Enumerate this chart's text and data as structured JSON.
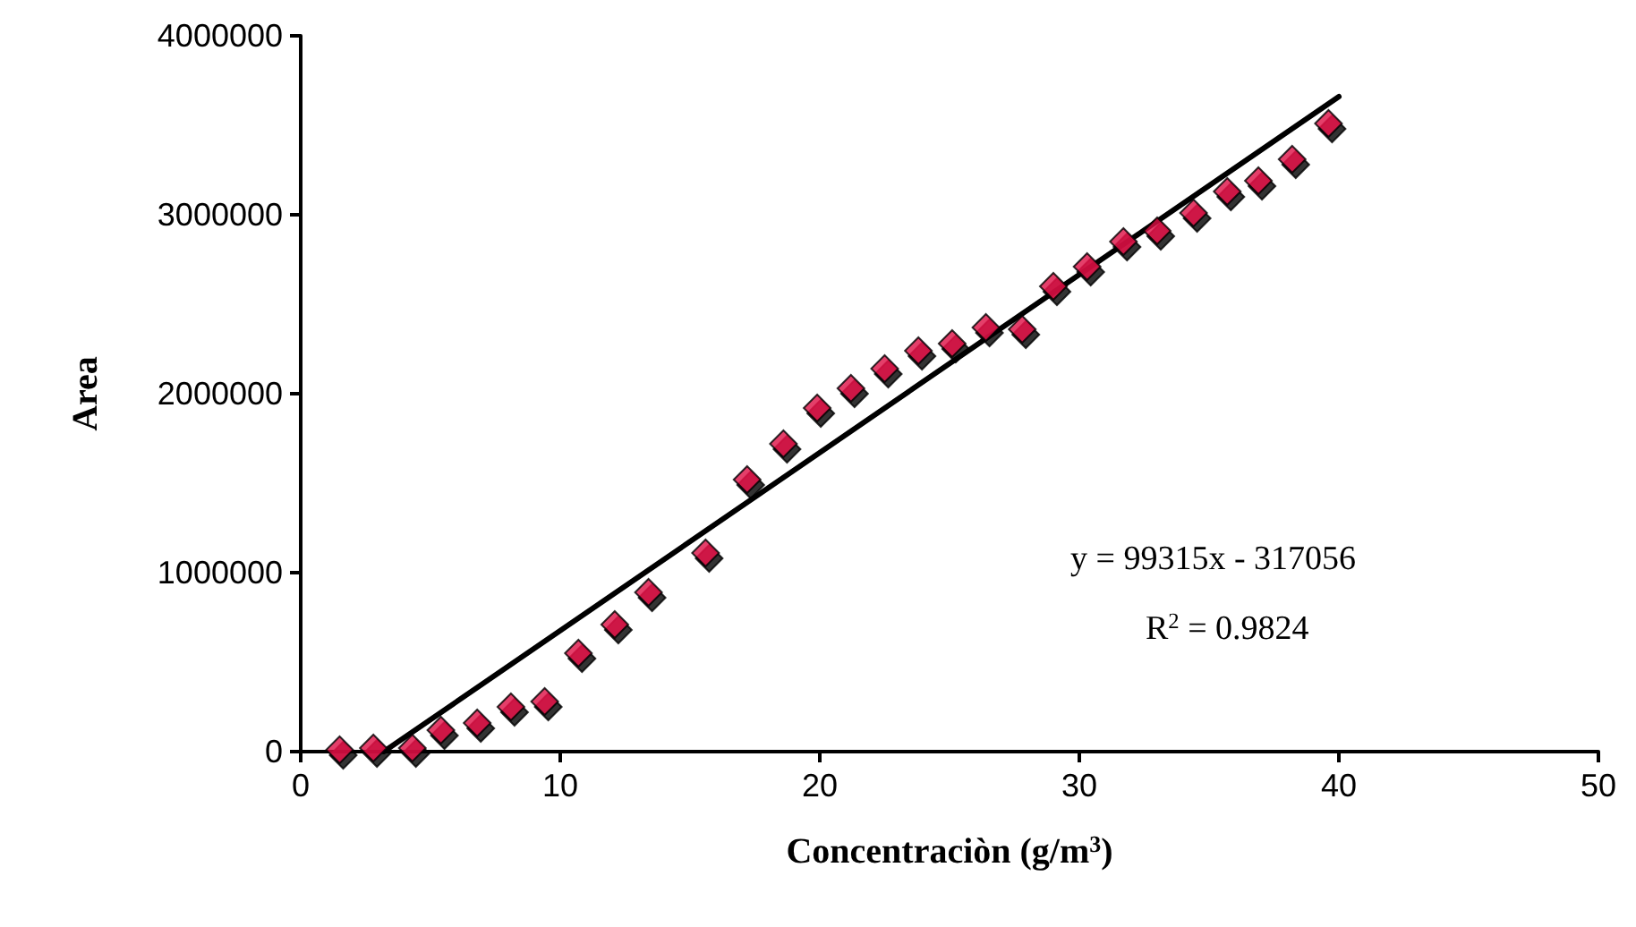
{
  "chart_data": {
    "type": "scatter",
    "xlabel": "Concentraciòn (g/m$^{3}$)",
    "ylabel": "Area",
    "xlim": [
      0,
      50
    ],
    "xticks": [
      0,
      10,
      20,
      30,
      40,
      50
    ],
    "ylim": [
      0,
      4000000
    ],
    "yticks": [
      0,
      1000000,
      2000000,
      3000000,
      4000000
    ],
    "grid": false,
    "annotations": [
      "y = 99315x - 317056",
      "R$^{2}$ = 0.9824"
    ],
    "series": [
      {
        "marker": "diamond",
        "color": "#dd1144",
        "x": [
          1.5,
          2.8,
          4.3,
          5.4,
          6.8,
          8.1,
          9.4,
          10.7,
          12.1,
          13.4,
          15.6,
          17.2,
          18.6,
          19.9,
          21.2,
          22.5,
          23.8,
          25.1,
          26.4,
          27.8,
          29.0,
          30.3,
          31.7,
          33.0,
          34.4,
          35.7,
          36.9,
          38.2,
          39.6
        ],
        "values": [
          10000,
          20000,
          20000,
          120000,
          160000,
          250000,
          280000,
          550000,
          710000,
          890000,
          1110000,
          1520000,
          1720000,
          1920000,
          2030000,
          2140000,
          2240000,
          2280000,
          2370000,
          2360000,
          2600000,
          2710000,
          2850000,
          2910000,
          3010000,
          3130000,
          3190000,
          3310000,
          3510000
        ]
      },
      {
        "type": "line",
        "color": "#000000",
        "line_style": "solid",
        "x": [
          3.2,
          40
        ],
        "values": [
          0,
          3660000
        ]
      }
    ]
  }
}
